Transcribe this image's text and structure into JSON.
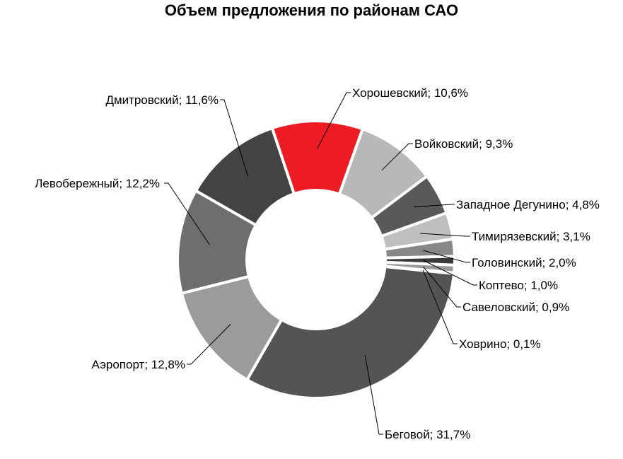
{
  "chart_data": {
    "type": "pie",
    "title": "Объем предложения по районам САО",
    "categories": [
      "Хорошевский",
      "Войковский",
      "Западное Дегунино",
      "Тимирязевский",
      "Головинский",
      "Коптево",
      "Савеловский",
      "Ховрино",
      "Беговой",
      "Аэропорт",
      "Левобережный",
      "Дмитровский"
    ],
    "values": [
      10.6,
      9.3,
      4.8,
      3.1,
      2.0,
      1.0,
      0.9,
      0.1,
      31.7,
      12.8,
      12.2,
      11.6
    ],
    "labels": [
      "Хорошевский; 10,6%",
      "Войковский; 9,3%",
      "Западное Дегунино; 4,8%",
      "Тимирязевский; 3,1%",
      "Головинский; 2,0%",
      "Коптево; 1,0%",
      "Савеловский; 0,9%",
      "Ховрино; 0,1%",
      "Беговой; 31,7%",
      "Аэропорт; 12,8%",
      "Левобережный; 12,2%",
      "Дмитровский; 11,6%"
    ],
    "colors": [
      "#ED1C24",
      "#B8B8B8",
      "#595959",
      "#BFBFBF",
      "#878787",
      "#3A3A3A",
      "#9A9A9A",
      "#A6A6A6",
      "#545454",
      "#9B9B9B",
      "#6E6E6E",
      "#434343"
    ],
    "donut": true,
    "legend": "none"
  }
}
